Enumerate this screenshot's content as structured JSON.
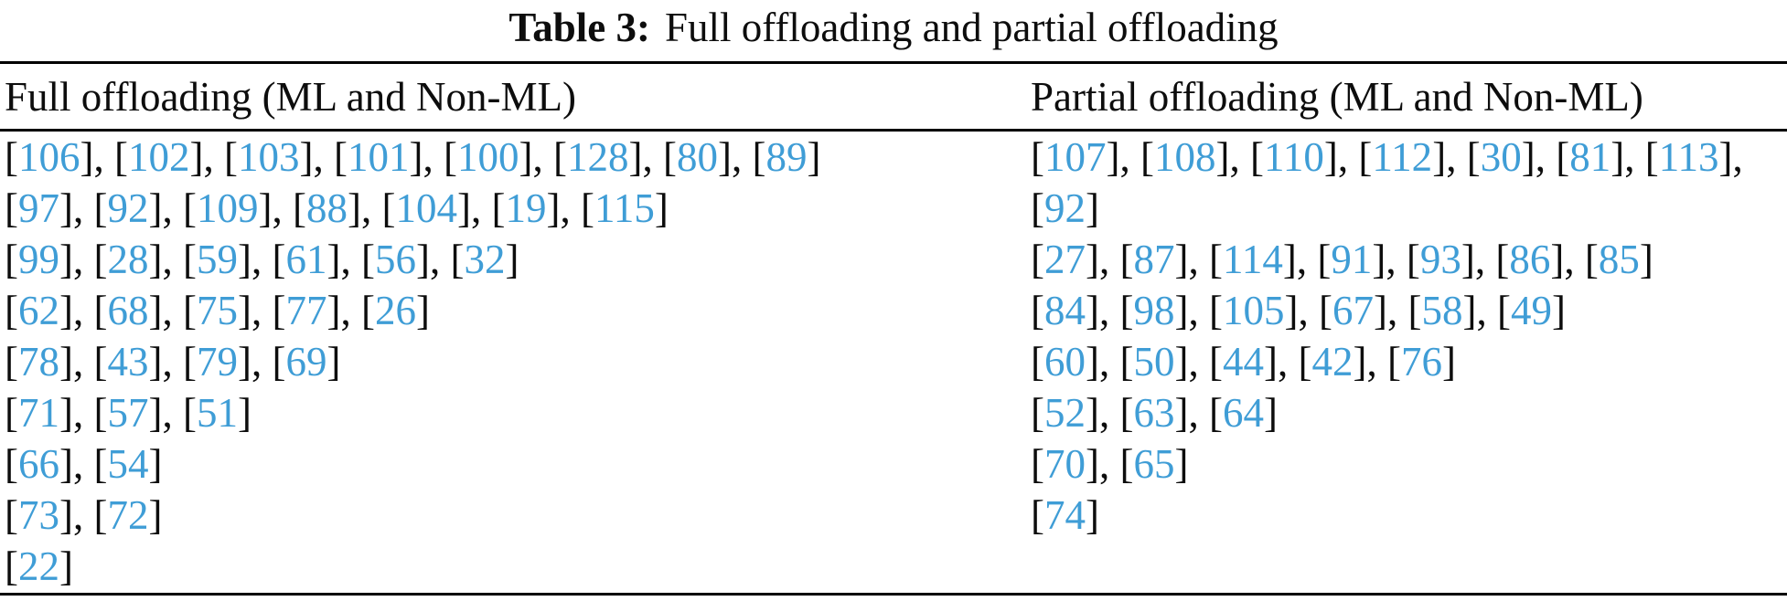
{
  "caption": {
    "label": "Table 3:",
    "text": "Full offloading and partial offloading"
  },
  "colors": {
    "citation": "#3f9dd6",
    "text": "#0d0d0d",
    "rule": "#000000"
  },
  "columns": [
    {
      "header": "Full offloading (ML and Non-ML)",
      "lines": [
        {
          "refs": [
            106,
            102,
            103,
            101,
            100,
            128,
            80,
            89
          ],
          "trailing_comma": false
        },
        {
          "refs": [
            97,
            92,
            109,
            88,
            104,
            19,
            115
          ],
          "trailing_comma": false
        },
        {
          "refs": [
            99,
            28,
            59,
            61,
            56,
            32
          ],
          "trailing_comma": false
        },
        {
          "refs": [
            62,
            68,
            75,
            77,
            26
          ],
          "trailing_comma": false
        },
        {
          "refs": [
            78,
            43,
            79,
            69
          ],
          "trailing_comma": false
        },
        {
          "refs": [
            71,
            57,
            51
          ],
          "trailing_comma": false
        },
        {
          "refs": [
            66,
            54
          ],
          "trailing_comma": false
        },
        {
          "refs": [
            73,
            72
          ],
          "trailing_comma": false
        },
        {
          "refs": [
            22
          ],
          "trailing_comma": false
        }
      ]
    },
    {
      "header": "Partial offloading (ML and Non-ML)",
      "lines": [
        {
          "refs": [
            107,
            108,
            110,
            112,
            30,
            81,
            113
          ],
          "trailing_comma": true
        },
        {
          "refs": [
            92
          ],
          "trailing_comma": false
        },
        {
          "refs": [
            27,
            87,
            114,
            91,
            93,
            86,
            85
          ],
          "trailing_comma": false
        },
        {
          "refs": [
            84,
            98,
            105,
            67,
            58,
            49
          ],
          "trailing_comma": false
        },
        {
          "refs": [
            60,
            50,
            44,
            42,
            76
          ],
          "trailing_comma": false
        },
        {
          "refs": [
            52,
            63,
            64
          ],
          "trailing_comma": false
        },
        {
          "refs": [
            70,
            65
          ],
          "trailing_comma": false
        },
        {
          "refs": [
            74
          ],
          "trailing_comma": false
        }
      ]
    }
  ]
}
